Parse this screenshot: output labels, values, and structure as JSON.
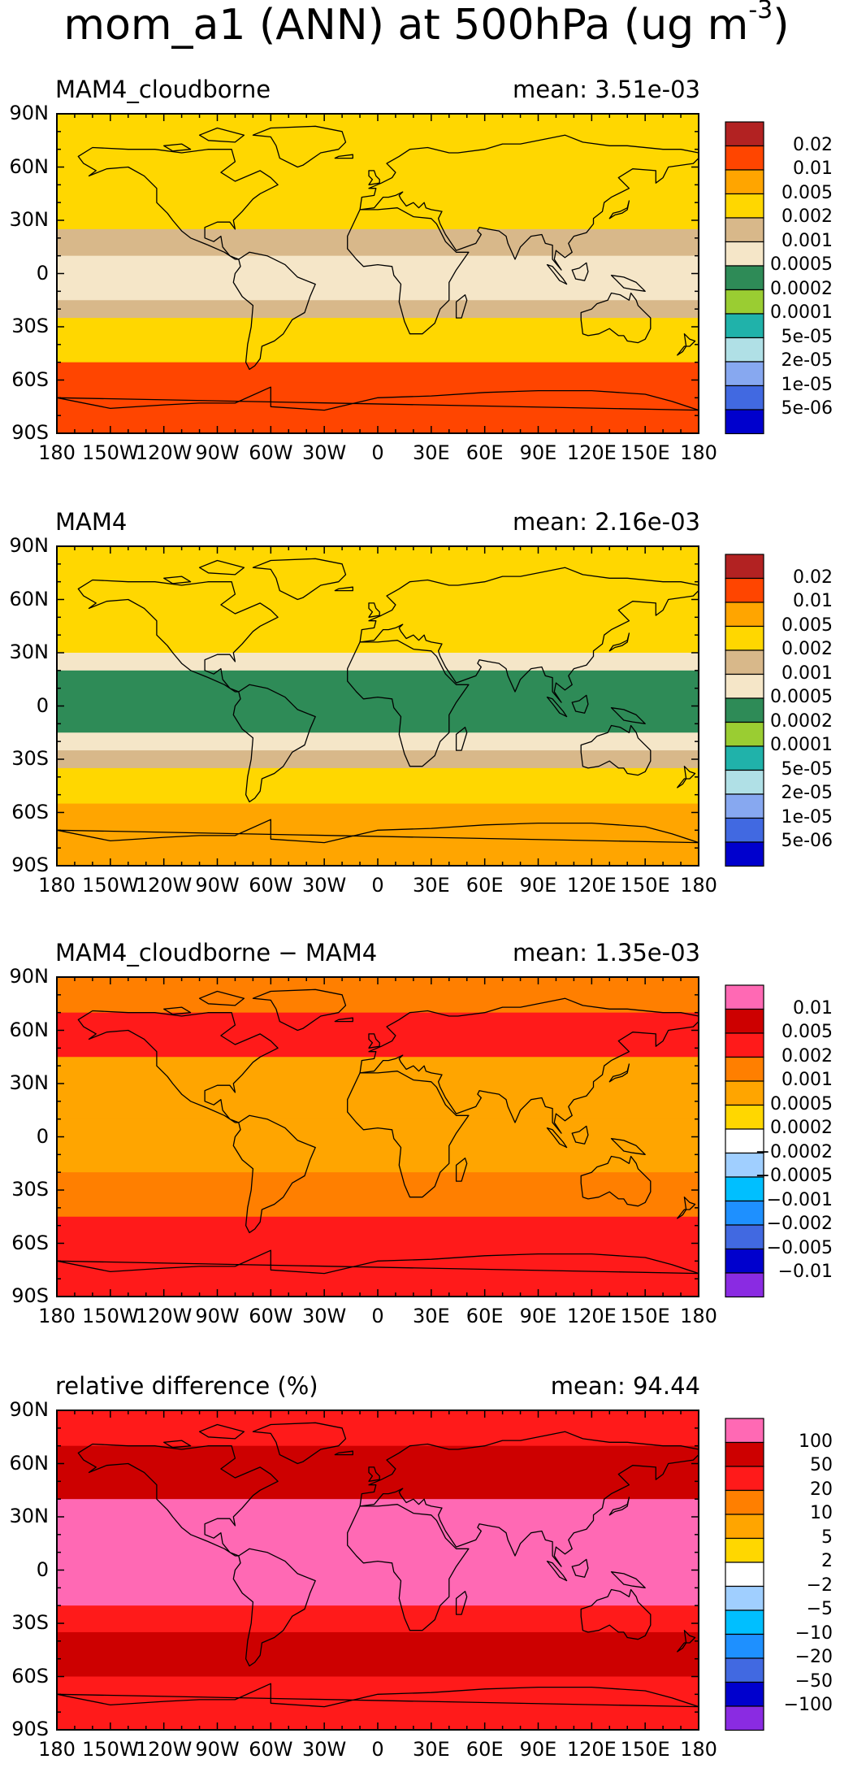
{
  "title": "mom_a1 (ANN) at 500hPa (ug m",
  "title_sup": "-3",
  "title_close": ")",
  "panels": [
    {
      "label": "MAM4_cloudborne",
      "mean": "mean: 3.51e-03",
      "colorbar": {
        "colors": [
          "#b22222",
          "#ff4500",
          "#ffa500",
          "#ffd700",
          "#d8b88a",
          "#f5e6c8",
          "#2e8b57",
          "#9acd32",
          "#20b2aa",
          "#b0e0e6",
          "#87a8f0",
          "#4169e1",
          "#0000cd"
        ],
        "labels": [
          "0.02",
          "0.01",
          "0.005",
          "0.002",
          "0.001",
          "0.0005",
          "0.0002",
          "0.0001",
          "5e-05",
          "2e-05",
          "1e-05",
          "5e-06"
        ]
      }
    },
    {
      "label": "MAM4",
      "mean": "mean: 2.16e-03",
      "colorbar": {
        "colors": [
          "#b22222",
          "#ff4500",
          "#ffa500",
          "#ffd700",
          "#d8b88a",
          "#f5e6c8",
          "#2e8b57",
          "#9acd32",
          "#20b2aa",
          "#b0e0e6",
          "#87a8f0",
          "#4169e1",
          "#0000cd"
        ],
        "labels": [
          "0.02",
          "0.01",
          "0.005",
          "0.002",
          "0.001",
          "0.0005",
          "0.0002",
          "0.0001",
          "5e-05",
          "2e-05",
          "1e-05",
          "5e-06"
        ]
      }
    },
    {
      "label": "MAM4_cloudborne − MAM4",
      "mean": "mean: 1.35e-03",
      "colorbar": {
        "colors": [
          "#ff69b4",
          "#cd0000",
          "#ff1a1a",
          "#ff7f00",
          "#ffa500",
          "#ffd700",
          "#ffffff",
          "#a0cfff",
          "#00bfff",
          "#1e90ff",
          "#4169e1",
          "#0000cd",
          "#8a2be2"
        ],
        "labels": [
          "0.01",
          "0.005",
          "0.002",
          "0.001",
          "0.0005",
          "0.0002",
          "−0.0002",
          "−0.0005",
          "−0.001",
          "−0.002",
          "−0.005",
          "−0.01"
        ]
      }
    },
    {
      "label": "relative difference (%)",
      "mean": "mean: 94.44",
      "colorbar": {
        "colors": [
          "#ff69b4",
          "#cd0000",
          "#ff1a1a",
          "#ff7f00",
          "#ffa500",
          "#ffd700",
          "#ffffff",
          "#a0cfff",
          "#00bfff",
          "#1e90ff",
          "#4169e1",
          "#0000cd",
          "#8a2be2"
        ],
        "labels": [
          "100",
          "50",
          "20",
          "10",
          "5",
          "2",
          "−2",
          "−5",
          "−10",
          "−20",
          "−50",
          "−100"
        ]
      }
    }
  ],
  "chart_data": {
    "type": "heatmap",
    "description_kind": "four global lat-lon filled-contour maps with continental outlines",
    "xticks": [
      "180",
      "150W",
      "120W",
      "90W",
      "60W",
      "30W",
      "0",
      "30E",
      "60E",
      "90E",
      "120E",
      "150E",
      "180"
    ],
    "yticks": [
      "90N",
      "60N",
      "30N",
      "0",
      "30S",
      "60S",
      "90S"
    ],
    "xlim": [
      -180,
      180
    ],
    "ylim": [
      -90,
      90
    ],
    "zonal_bands": [
      [
        {
          "lat_from": 90,
          "lat_to": 65,
          "color_index": 3
        },
        {
          "lat_from": 65,
          "lat_to": 25,
          "color_index": 3
        },
        {
          "lat_from": 25,
          "lat_to": 10,
          "color_index": 4
        },
        {
          "lat_from": 10,
          "lat_to": -15,
          "color_index": 5
        },
        {
          "lat_from": -15,
          "lat_to": -25,
          "color_index": 4
        },
        {
          "lat_from": -25,
          "lat_to": -50,
          "color_index": 3
        },
        {
          "lat_from": -50,
          "lat_to": -65,
          "color_index": 1
        },
        {
          "lat_from": -65,
          "lat_to": -90,
          "color_index": 1
        }
      ],
      [
        {
          "lat_from": 90,
          "lat_to": 70,
          "color_index": 3
        },
        {
          "lat_from": 70,
          "lat_to": 30,
          "color_index": 3
        },
        {
          "lat_from": 30,
          "lat_to": 20,
          "color_index": 5
        },
        {
          "lat_from": 20,
          "lat_to": -15,
          "color_index": 6
        },
        {
          "lat_from": -15,
          "lat_to": -25,
          "color_index": 5
        },
        {
          "lat_from": -25,
          "lat_to": -35,
          "color_index": 4
        },
        {
          "lat_from": -35,
          "lat_to": -55,
          "color_index": 3
        },
        {
          "lat_from": -55,
          "lat_to": -90,
          "color_index": 2
        }
      ],
      [
        {
          "lat_from": 90,
          "lat_to": 70,
          "color_index": 3
        },
        {
          "lat_from": 70,
          "lat_to": 45,
          "color_index": 2
        },
        {
          "lat_from": 45,
          "lat_to": 10,
          "color_index": 4
        },
        {
          "lat_from": 10,
          "lat_to": -20,
          "color_index": 4
        },
        {
          "lat_from": -20,
          "lat_to": -45,
          "color_index": 3
        },
        {
          "lat_from": -45,
          "lat_to": -60,
          "color_index": 2
        },
        {
          "lat_from": -60,
          "lat_to": -90,
          "color_index": 2
        }
      ],
      [
        {
          "lat_from": 90,
          "lat_to": 70,
          "color_index": 2
        },
        {
          "lat_from": 70,
          "lat_to": 40,
          "color_index": 1
        },
        {
          "lat_from": 40,
          "lat_to": -20,
          "color_index": 0
        },
        {
          "lat_from": -20,
          "lat_to": -35,
          "color_index": 2
        },
        {
          "lat_from": -35,
          "lat_to": -60,
          "color_index": 1
        },
        {
          "lat_from": -60,
          "lat_to": -90,
          "color_index": 2
        }
      ]
    ]
  }
}
